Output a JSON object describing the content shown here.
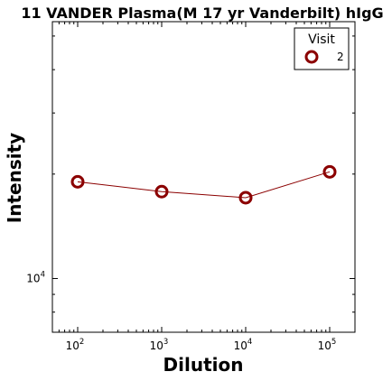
{
  "chart_data": {
    "type": "line",
    "title": "11 VANDER Plasma(M 17 yr Vanderbilt) hIgG",
    "xlabel": "Dilution",
    "ylabel": "Intensity",
    "xscale": "log",
    "yscale": "log",
    "xlim": [
      50,
      200000
    ],
    "ylim": [
      7000,
      55000
    ],
    "xticks": [
      {
        "base": "10",
        "exp": "2"
      },
      {
        "base": "10",
        "exp": "3"
      },
      {
        "base": "10",
        "exp": "4"
      },
      {
        "base": "10",
        "exp": "5"
      }
    ],
    "yticks": [
      {
        "base": "10",
        "exp": "4"
      }
    ],
    "legend": {
      "title": "Visit",
      "position": "top-right"
    },
    "series": [
      {
        "name": "2",
        "color": "#8b0000",
        "marker": "open-circle",
        "x": [
          100,
          1000,
          10000,
          100000
        ],
        "y": [
          19000,
          17800,
          17100,
          20300
        ]
      }
    ],
    "grid": false
  }
}
